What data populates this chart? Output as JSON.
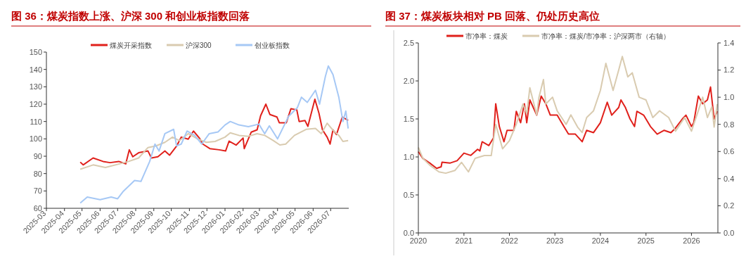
{
  "chart_data": [
    {
      "type": "line",
      "title": "图 36：煤炭指数上涨、沪深 300 和创业板指数回落",
      "xlim": [
        "2025-03",
        "2026-08"
      ],
      "xticks": [
        "2025-03",
        "2025-04",
        "2025-05",
        "2025-06",
        "2025-07",
        "2025-08",
        "2025-09",
        "2025-10",
        "2025-11",
        "2025-12",
        "2026-01",
        "2026-02",
        "2026-03",
        "2026-04",
        "2026-05",
        "2026-06",
        "2026-07"
      ],
      "ylim": [
        60,
        150
      ],
      "yticks": [
        60,
        70,
        80,
        90,
        100,
        110,
        120,
        130,
        140,
        150
      ],
      "legend": "top",
      "grid": false,
      "series": [
        {
          "name": "煤炭开采指数",
          "color": "#e0201b",
          "x": [
            "2025-04-28",
            "2025-05-03",
            "2025-05-20",
            "2025-06-06",
            "2025-06-18",
            "2025-07-03",
            "2025-07-15",
            "2025-07-21",
            "2025-07-27",
            "2025-08-06",
            "2025-08-22",
            "2025-08-28",
            "2025-09-08",
            "2025-09-20",
            "2025-09-28",
            "2025-10-10",
            "2025-10-18",
            "2025-10-30",
            "2025-11-08",
            "2025-11-18",
            "2025-11-24",
            "2025-12-06",
            "2025-12-22",
            "2026-01-02",
            "2026-01-08",
            "2026-01-20",
            "2026-02-01",
            "2026-02-03",
            "2026-02-15",
            "2026-02-25",
            "2026-03-03",
            "2026-03-12",
            "2026-03-19",
            "2026-03-31",
            "2026-04-04",
            "2026-04-16",
            "2026-04-24",
            "2026-05-04",
            "2026-05-08",
            "2026-05-18",
            "2026-05-23",
            "2026-06-04",
            "2026-06-11",
            "2026-06-17",
            "2026-06-25",
            "2026-06-30",
            "2026-07-05",
            "2026-07-11",
            "2026-07-21",
            "2026-07-31"
          ],
          "values": [
            86.6,
            85,
            89,
            87,
            86.3,
            87,
            85.6,
            93.7,
            89.7,
            92,
            93,
            89,
            89.7,
            93,
            90.6,
            95.8,
            101,
            99.8,
            104.5,
            100.5,
            97,
            94.4,
            93.7,
            93,
            98.7,
            96.4,
            100.5,
            94.4,
            103.9,
            105.2,
            113.3,
            120,
            114,
            112.6,
            109.3,
            109.3,
            117.4,
            116.7,
            110,
            110.6,
            107.2,
            122.8,
            114.7,
            105.2,
            101,
            97,
            105.2,
            102.5,
            112.6,
            110.6
          ]
        },
        {
          "name": "沪深300",
          "color": "#d9cbb0",
          "x": [
            "2025-04-28",
            "2025-05-20",
            "2025-06-10",
            "2025-07-03",
            "2025-07-20",
            "2025-08-06",
            "2025-08-22",
            "2025-09-05",
            "2025-09-20",
            "2025-10-03",
            "2025-10-15",
            "2025-10-30",
            "2025-11-15",
            "2025-11-30",
            "2025-12-15",
            "2026-01-01",
            "2026-01-10",
            "2026-01-25",
            "2026-02-10",
            "2026-02-25",
            "2026-03-10",
            "2026-03-25",
            "2026-04-05",
            "2026-04-15",
            "2026-04-30",
            "2026-05-20",
            "2026-06-05",
            "2026-06-15",
            "2026-06-25",
            "2026-07-05",
            "2026-07-15",
            "2026-07-22",
            "2026-07-31"
          ],
          "values": [
            82.5,
            85,
            83.5,
            85.5,
            87,
            89,
            95,
            96,
            98,
            101,
            99,
            103,
            100,
            98,
            98.5,
            101,
            103.5,
            102,
            101.5,
            103,
            102,
            99,
            96.5,
            97,
            102,
            105.5,
            106,
            103,
            109,
            105,
            102,
            98.5,
            99
          ]
        },
        {
          "name": "创业板指数",
          "color": "#a6c8f5",
          "x": [
            "2025-04-28",
            "2025-05-10",
            "2025-06-01",
            "2025-06-20",
            "2025-07-01",
            "2025-07-10",
            "2025-07-30",
            "2025-08-10",
            "2025-08-25",
            "2025-09-03",
            "2025-09-10",
            "2025-09-20",
            "2025-10-05",
            "2025-10-10",
            "2025-10-18",
            "2025-10-28",
            "2025-11-10",
            "2025-11-22",
            "2025-12-05",
            "2025-12-20",
            "2026-01-01",
            "2026-01-10",
            "2026-01-25",
            "2026-02-10",
            "2026-02-28",
            "2026-03-10",
            "2026-03-18",
            "2026-04-01",
            "2026-04-20",
            "2026-05-05",
            "2026-05-12",
            "2026-05-22",
            "2026-06-05",
            "2026-06-12",
            "2026-06-22",
            "2026-06-27",
            "2026-07-05",
            "2026-07-15",
            "2026-07-22",
            "2026-07-27",
            "2026-07-31"
          ],
          "values": [
            63,
            66.5,
            65,
            66.5,
            65.5,
            69.5,
            76,
            75.5,
            87,
            97,
            93,
            103,
            105.5,
            96,
            97,
            104.5,
            102,
            97,
            103,
            104,
            108,
            110,
            108,
            107,
            108.5,
            103,
            107.5,
            100,
            113,
            118,
            124,
            121,
            128,
            120,
            136,
            142,
            137,
            124,
            110,
            116,
            106
          ]
        }
      ]
    },
    {
      "type": "line",
      "title": "图 37：煤炭板块相对 PB 回落、仍处历史高位",
      "xlim": [
        "2020-01",
        "2026-08"
      ],
      "xticks": [
        "2020",
        "2021",
        "2022",
        "2023",
        "2024",
        "2025",
        "2026"
      ],
      "ylim": [
        0,
        2.5
      ],
      "yticks": [
        {
          "value": 0,
          "label": "0.0"
        },
        0.5,
        {
          "value": 1,
          "label": "1.0"
        },
        1.5,
        {
          "value": 2,
          "label": "2.0"
        },
        2.5
      ],
      "y2lim": [
        0,
        1.4
      ],
      "y2ticks": [
        {
          "value": 0,
          "label": "0.0"
        },
        0.2,
        0.4,
        0.6,
        0.8,
        {
          "value": 1,
          "label": "1.0"
        },
        1.2,
        1.4
      ],
      "legend": "top",
      "grid": false,
      "series": [
        {
          "name": "市净率：煤炭",
          "color": "#e0201b",
          "x": [
            "2020-01-01",
            "2020-02-06",
            "2020-04-01",
            "2020-05-27",
            "2020-07-02",
            "2020-07-09",
            "2020-09-13",
            "2020-11-07",
            "2021-01-01",
            "2021-02-25",
            "2021-04-20",
            "2021-05-09",
            "2021-05-27",
            "2021-07-20",
            "2021-08-26",
            "2021-09-13",
            "2021-10-12",
            "2021-11-18",
            "2021-12-13",
            "2022-02-06",
            "2022-02-25",
            "2022-04-01",
            "2022-05-01",
            "2022-05-20",
            "2022-06-14",
            "2022-08-08",
            "2022-09-13",
            "2022-10-20",
            "2022-11-25",
            "2023-01-19",
            "2023-03-14",
            "2023-04-20",
            "2023-06-14",
            "2023-08-08",
            "2023-09-13",
            "2023-11-07",
            "2024-01-01",
            "2024-02-25",
            "2024-04-01",
            "2024-05-27",
            "2024-06-14",
            "2024-07-20",
            "2024-08-26",
            "2024-10-01",
            "2024-10-20",
            "2024-12-13",
            "2025-02-06",
            "2025-04-01",
            "2025-05-27",
            "2025-07-20",
            "2025-08-26",
            "2025-10-20",
            "2025-11-18",
            "2026-01-01",
            "2026-01-19",
            "2026-02-25",
            "2026-04-01",
            "2026-05-09",
            "2026-06-03",
            "2026-07-02",
            "2026-07-27"
          ],
          "values": [
            1.07,
            0.98,
            0.92,
            0.85,
            0.87,
            0.93,
            0.92,
            0.95,
            1.05,
            1.02,
            1.1,
            1.08,
            1.2,
            1.15,
            1.25,
            1.7,
            1.4,
            1.2,
            1.35,
            1.35,
            1.6,
            1.45,
            1.7,
            1.45,
            1.75,
            1.55,
            1.8,
            1.7,
            1.55,
            1.55,
            1.4,
            1.3,
            1.3,
            1.2,
            1.35,
            1.32,
            1.45,
            1.72,
            1.55,
            1.65,
            1.75,
            1.65,
            1.5,
            1.4,
            1.6,
            1.55,
            1.4,
            1.3,
            1.35,
            1.32,
            1.38,
            1.5,
            1.55,
            1.4,
            1.45,
            1.8,
            1.7,
            1.75,
            1.92,
            1.5,
            1.6
          ]
        },
        {
          "name": "市净率：煤炭/市净率：沪深两市（右轴）",
          "color": "#d9cbb0",
          "axis": "y2",
          "x": [
            "2020-01-01",
            "2020-02-06",
            "2020-04-01",
            "2020-06-14",
            "2020-08-08",
            "2020-10-20",
            "2020-12-13",
            "2021-02-06",
            "2021-04-01",
            "2021-06-14",
            "2021-08-08",
            "2021-09-13",
            "2021-11-07",
            "2022-01-01",
            "2022-02-25",
            "2022-04-20",
            "2022-05-20",
            "2022-06-14",
            "2022-08-08",
            "2022-08-26",
            "2022-10-01",
            "2022-10-20",
            "2022-12-13",
            "2023-01-19",
            "2023-04-01",
            "2023-05-09",
            "2023-07-02",
            "2023-08-08",
            "2023-09-13",
            "2023-11-07",
            "2024-01-01",
            "2024-02-14",
            "2024-04-12",
            "2024-05-27",
            "2024-06-25",
            "2024-08-08",
            "2024-09-13",
            "2024-11-07",
            "2025-01-01",
            "2025-02-25",
            "2025-04-20",
            "2025-07-02",
            "2025-08-26",
            "2025-11-07",
            "2026-01-01",
            "2026-02-25",
            "2026-04-01",
            "2026-05-09",
            "2026-06-14",
            "2026-07-02",
            "2026-07-27"
          ],
          "values": [
            0.63,
            0.55,
            0.5,
            0.45,
            0.44,
            0.46,
            0.52,
            0.45,
            0.55,
            0.57,
            0.57,
            0.8,
            0.62,
            0.68,
            0.8,
            0.95,
            0.88,
            1.07,
            0.87,
            1.0,
            1.13,
            0.95,
            1.0,
            0.9,
            0.8,
            0.87,
            0.78,
            0.74,
            0.85,
            0.9,
            1.05,
            1.25,
            1.05,
            1.2,
            1.3,
            1.15,
            1.18,
            1.0,
            0.98,
            0.85,
            0.9,
            0.85,
            0.75,
            0.85,
            0.75,
            0.9,
            1.0,
            0.85,
            0.93,
            0.78,
            0.95
          ]
        }
      ]
    }
  ]
}
